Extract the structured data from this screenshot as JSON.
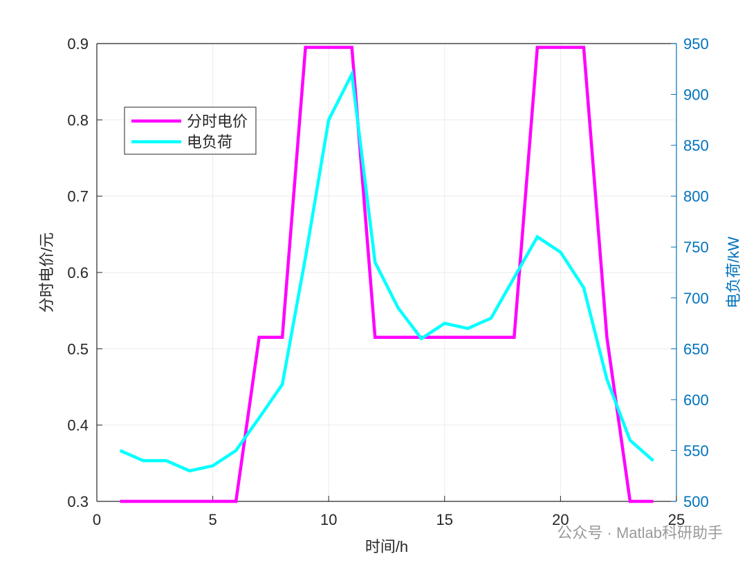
{
  "chart_data": {
    "type": "line",
    "x_label": "时间/h",
    "y_label": "分时电价/元",
    "y2_label": "电负荷/kW",
    "x": [
      1,
      2,
      3,
      4,
      5,
      6,
      7,
      8,
      9,
      10,
      11,
      12,
      13,
      14,
      15,
      16,
      17,
      18,
      19,
      20,
      21,
      22,
      23,
      24
    ],
    "series": [
      {
        "name": "分时电价",
        "color": "#ff00ff",
        "values": [
          0.3,
          0.3,
          0.3,
          0.3,
          0.3,
          0.3,
          0.515,
          0.515,
          0.895,
          0.895,
          0.895,
          0.515,
          0.515,
          0.515,
          0.515,
          0.515,
          0.515,
          0.515,
          0.895,
          0.895,
          0.895,
          0.515,
          0.3,
          0.3
        ]
      },
      {
        "name": "电负荷",
        "color": "#00ffff",
        "axis": "y2",
        "values": [
          550,
          540,
          540,
          530,
          535,
          550,
          582,
          615,
          740,
          875,
          920,
          735,
          690,
          660,
          675,
          670,
          680,
          720,
          760,
          745,
          710,
          620,
          560,
          540
        ]
      }
    ],
    "xlim": [
      0,
      25
    ],
    "xticks": [
      0,
      5,
      10,
      15,
      20,
      25
    ],
    "ylim": [
      0.3,
      0.9
    ],
    "yticks": [
      0.3,
      0.4,
      0.5,
      0.6,
      0.7,
      0.8,
      0.9
    ],
    "y2lim": [
      500,
      950
    ],
    "y2ticks": [
      500,
      550,
      600,
      650,
      700,
      750,
      800,
      850,
      900,
      950
    ],
    "y2_color": "#0072bd",
    "grid": true,
    "legend": "northwest",
    "watermark": "公众号 · Matlab科研助手"
  }
}
